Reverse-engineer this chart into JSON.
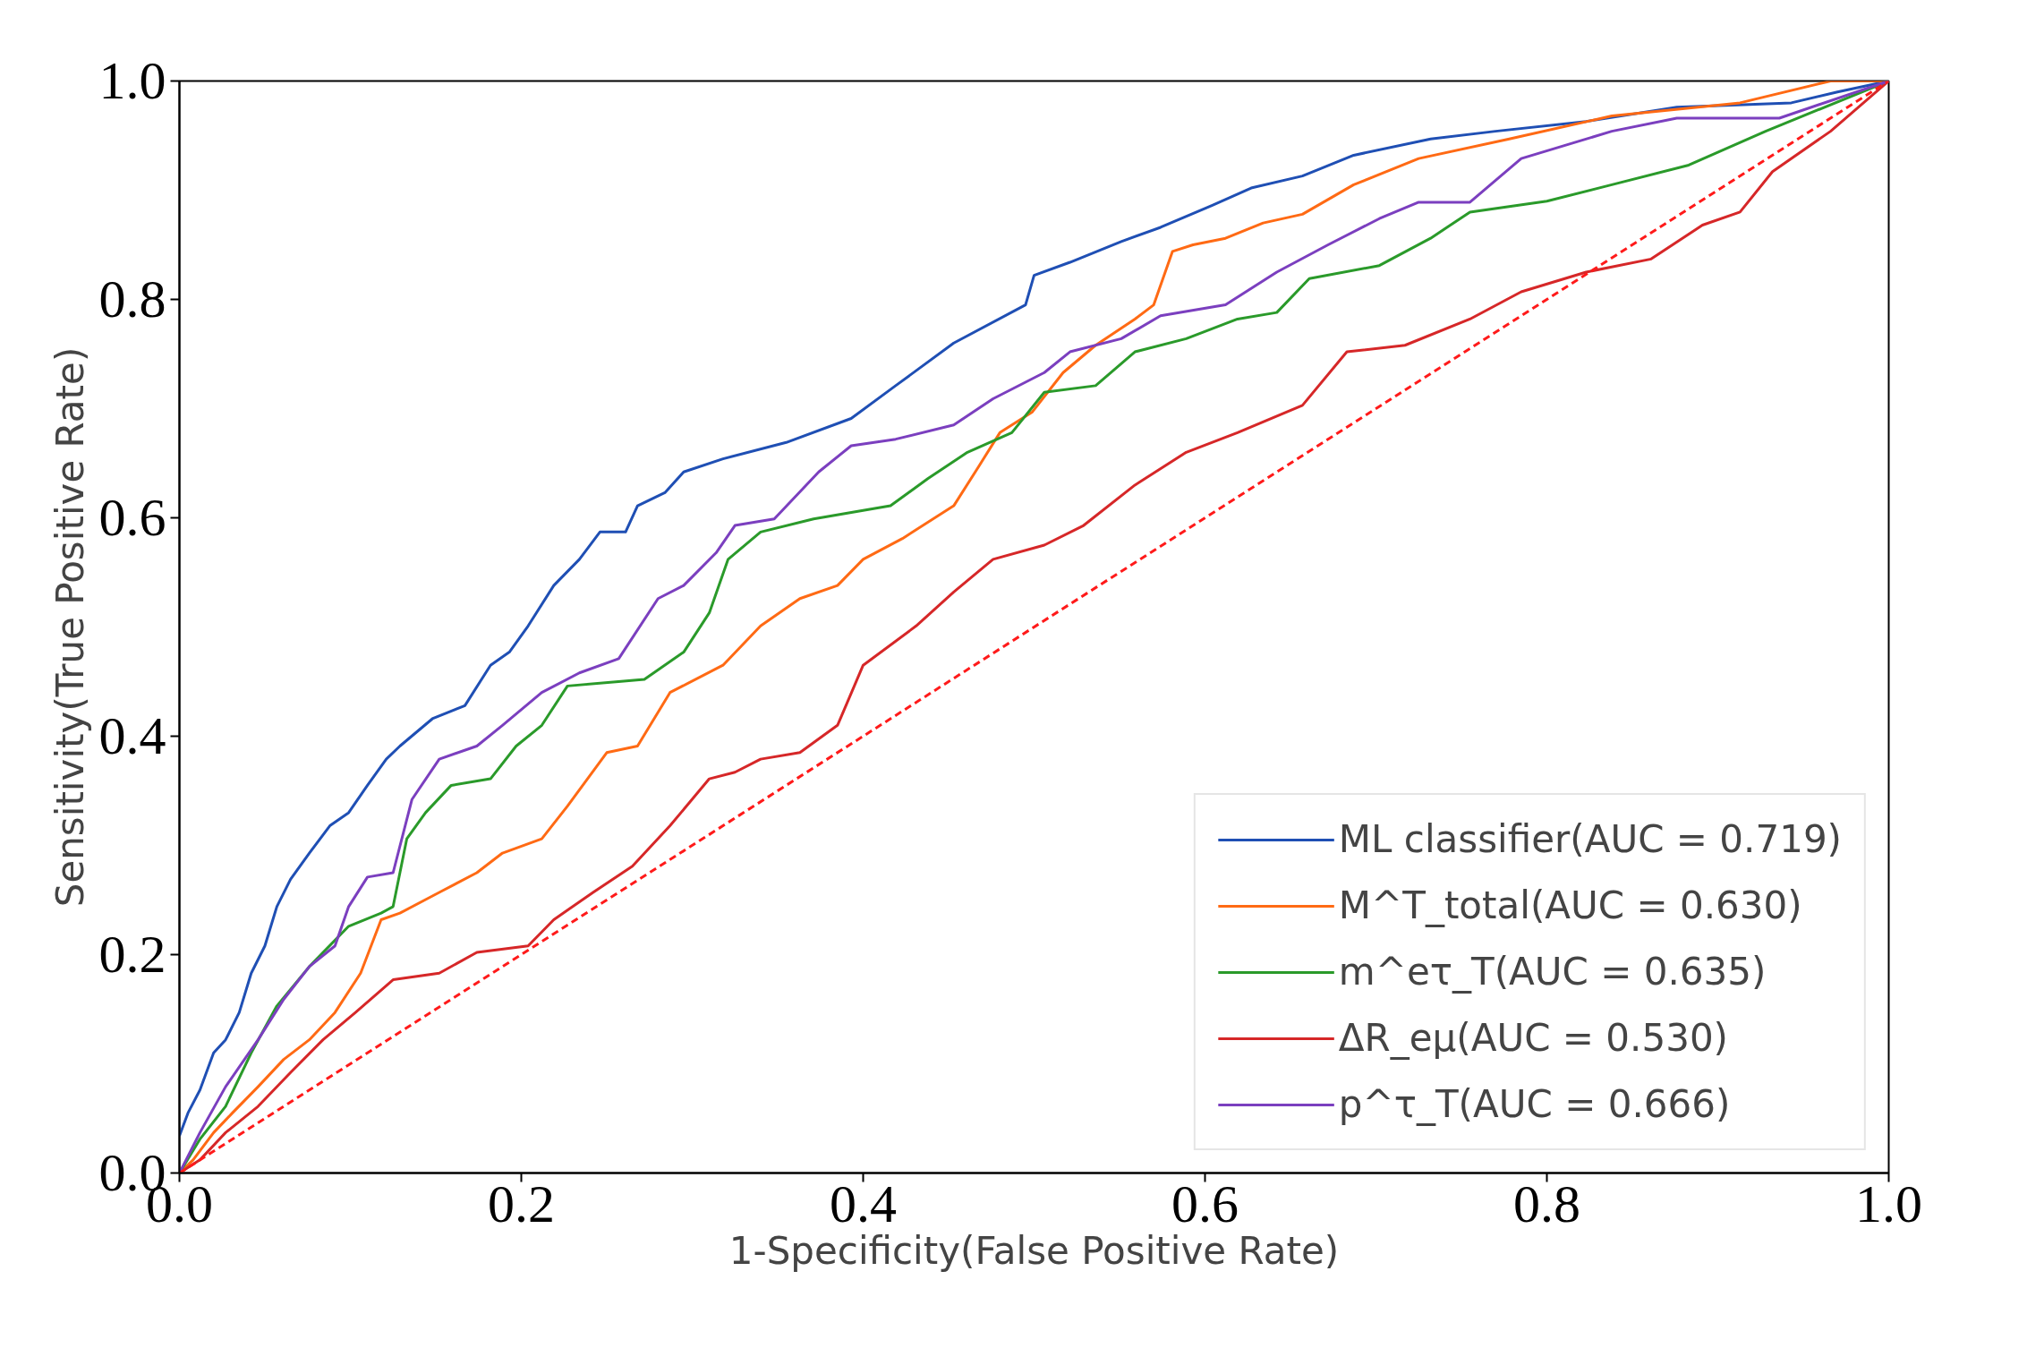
{
  "chart_data": {
    "type": "line",
    "xlabel": "1-Specificity(False Positive Rate)",
    "ylabel": "Sensitivity(True Positive Rate)",
    "xlim": [
      0,
      1
    ],
    "ylim": [
      0,
      1
    ],
    "xticks": [
      {
        "value": 0,
        "label": "0.0"
      },
      0.2,
      0.4,
      0.6,
      0.8,
      {
        "value": 1,
        "label": "1.0"
      }
    ],
    "yticks": [
      {
        "value": 0,
        "label": "0.0"
      },
      0.2,
      0.4,
      0.6,
      0.8,
      {
        "value": 1,
        "label": "1.0"
      }
    ],
    "legend": "bottom right",
    "series": [
      {
        "name": "ML classifier(AUC = 0.719)",
        "color": "#1f4fb4",
        "x": [
          0,
          0.005,
          0.012,
          0.02,
          0.027,
          0.035,
          0.042,
          0.05,
          0.057,
          0.065,
          0.076,
          0.088,
          0.099,
          0.11,
          0.121,
          0.129,
          0.148,
          0.167,
          0.182,
          0.193,
          0.204,
          0.219,
          0.234,
          0.246,
          0.261,
          0.268,
          0.284,
          0.295,
          0.318,
          0.355,
          0.393,
          0.419,
          0.453,
          0.495,
          0.5,
          0.521,
          0.551,
          0.574,
          0.604,
          0.627,
          0.657,
          0.687,
          0.732,
          0.77,
          0.823,
          0.876,
          0.943,
          0.97,
          1
        ],
        "values": [
          0.034,
          0.055,
          0.076,
          0.11,
          0.122,
          0.147,
          0.183,
          0.208,
          0.244,
          0.269,
          0.293,
          0.318,
          0.33,
          0.355,
          0.379,
          0.391,
          0.416,
          0.428,
          0.465,
          0.477,
          0.501,
          0.538,
          0.562,
          0.587,
          0.587,
          0.611,
          0.623,
          0.642,
          0.654,
          0.669,
          0.691,
          0.721,
          0.76,
          0.795,
          0.822,
          0.834,
          0.853,
          0.866,
          0.886,
          0.902,
          0.913,
          0.932,
          0.947,
          0.954,
          0.963,
          0.976,
          0.98,
          0.99,
          1
        ]
      },
      {
        "name": "M^T_total(AUC = 0.630)",
        "color": "#ff6a14",
        "x": [
          0,
          0.008,
          0.02,
          0.031,
          0.046,
          0.061,
          0.076,
          0.091,
          0.106,
          0.118,
          0.129,
          0.152,
          0.174,
          0.189,
          0.212,
          0.227,
          0.25,
          0.268,
          0.287,
          0.318,
          0.34,
          0.363,
          0.385,
          0.4,
          0.423,
          0.453,
          0.468,
          0.48,
          0.499,
          0.517,
          0.536,
          0.559,
          0.57,
          0.581,
          0.593,
          0.612,
          0.634,
          0.657,
          0.687,
          0.725,
          0.778,
          0.838,
          0.913,
          0.966,
          1
        ],
        "values": [
          0,
          0.012,
          0.037,
          0.055,
          0.079,
          0.104,
          0.122,
          0.147,
          0.183,
          0.232,
          0.238,
          0.257,
          0.275,
          0.293,
          0.306,
          0.336,
          0.385,
          0.391,
          0.44,
          0.465,
          0.501,
          0.526,
          0.538,
          0.562,
          0.581,
          0.611,
          0.648,
          0.678,
          0.697,
          0.733,
          0.758,
          0.782,
          0.795,
          0.844,
          0.85,
          0.856,
          0.87,
          0.878,
          0.905,
          0.929,
          0.947,
          0.968,
          0.98,
          1,
          1
        ]
      },
      {
        "name": "m^eτ_T(AUC = 0.635)",
        "color": "#2a9a2a",
        "x": [
          0,
          0.012,
          0.027,
          0.042,
          0.057,
          0.076,
          0.099,
          0.118,
          0.125,
          0.133,
          0.144,
          0.159,
          0.182,
          0.197,
          0.212,
          0.227,
          0.272,
          0.295,
          0.31,
          0.321,
          0.34,
          0.371,
          0.416,
          0.438,
          0.461,
          0.487,
          0.506,
          0.536,
          0.559,
          0.589,
          0.619,
          0.642,
          0.661,
          0.702,
          0.732,
          0.755,
          0.8,
          0.838,
          0.883,
          0.928,
          1
        ],
        "values": [
          0,
          0.031,
          0.061,
          0.11,
          0.153,
          0.189,
          0.226,
          0.238,
          0.244,
          0.306,
          0.33,
          0.355,
          0.361,
          0.391,
          0.41,
          0.446,
          0.452,
          0.477,
          0.513,
          0.562,
          0.587,
          0.599,
          0.611,
          0.636,
          0.66,
          0.678,
          0.715,
          0.721,
          0.752,
          0.764,
          0.782,
          0.788,
          0.819,
          0.831,
          0.856,
          0.88,
          0.89,
          0.905,
          0.923,
          0.954,
          1
        ]
      },
      {
        "name": "ΔR_eμ(AUC = 0.530)",
        "color": "#d62728",
        "x": [
          0,
          0.012,
          0.027,
          0.046,
          0.065,
          0.084,
          0.103,
          0.125,
          0.152,
          0.174,
          0.204,
          0.219,
          0.242,
          0.265,
          0.287,
          0.31,
          0.325,
          0.34,
          0.363,
          0.385,
          0.4,
          0.431,
          0.453,
          0.476,
          0.506,
          0.529,
          0.559,
          0.589,
          0.619,
          0.657,
          0.683,
          0.717,
          0.755,
          0.785,
          0.823,
          0.861,
          0.891,
          0.913,
          0.932,
          0.966,
          1
        ],
        "values": [
          0,
          0.012,
          0.037,
          0.061,
          0.092,
          0.122,
          0.147,
          0.177,
          0.183,
          0.202,
          0.208,
          0.232,
          0.257,
          0.281,
          0.318,
          0.361,
          0.367,
          0.379,
          0.385,
          0.41,
          0.465,
          0.501,
          0.532,
          0.562,
          0.575,
          0.593,
          0.63,
          0.66,
          0.678,
          0.703,
          0.752,
          0.758,
          0.782,
          0.807,
          0.825,
          0.837,
          0.868,
          0.88,
          0.917,
          0.954,
          1
        ]
      },
      {
        "name": "p^τ_T(AUC = 0.666)",
        "color": "#7b3fbf",
        "x": [
          0,
          0.012,
          0.027,
          0.046,
          0.061,
          0.076,
          0.091,
          0.099,
          0.11,
          0.125,
          0.136,
          0.152,
          0.174,
          0.189,
          0.212,
          0.234,
          0.257,
          0.28,
          0.295,
          0.314,
          0.325,
          0.348,
          0.374,
          0.393,
          0.419,
          0.453,
          0.476,
          0.506,
          0.521,
          0.551,
          0.574,
          0.612,
          0.642,
          0.672,
          0.702,
          0.725,
          0.755,
          0.785,
          0.838,
          0.876,
          0.936,
          1
        ],
        "values": [
          0,
          0.037,
          0.079,
          0.122,
          0.159,
          0.189,
          0.208,
          0.244,
          0.271,
          0.275,
          0.342,
          0.379,
          0.391,
          0.41,
          0.44,
          0.458,
          0.471,
          0.526,
          0.538,
          0.568,
          0.593,
          0.599,
          0.642,
          0.666,
          0.672,
          0.685,
          0.709,
          0.733,
          0.752,
          0.764,
          0.785,
          0.795,
          0.825,
          0.85,
          0.874,
          0.889,
          0.889,
          0.929,
          0.954,
          0.966,
          0.966,
          1
        ]
      },
      {
        "color": "#ff1a1a",
        "line_style": "dashed",
        "x": [
          0,
          1
        ],
        "values": [
          0,
          1
        ]
      }
    ]
  }
}
